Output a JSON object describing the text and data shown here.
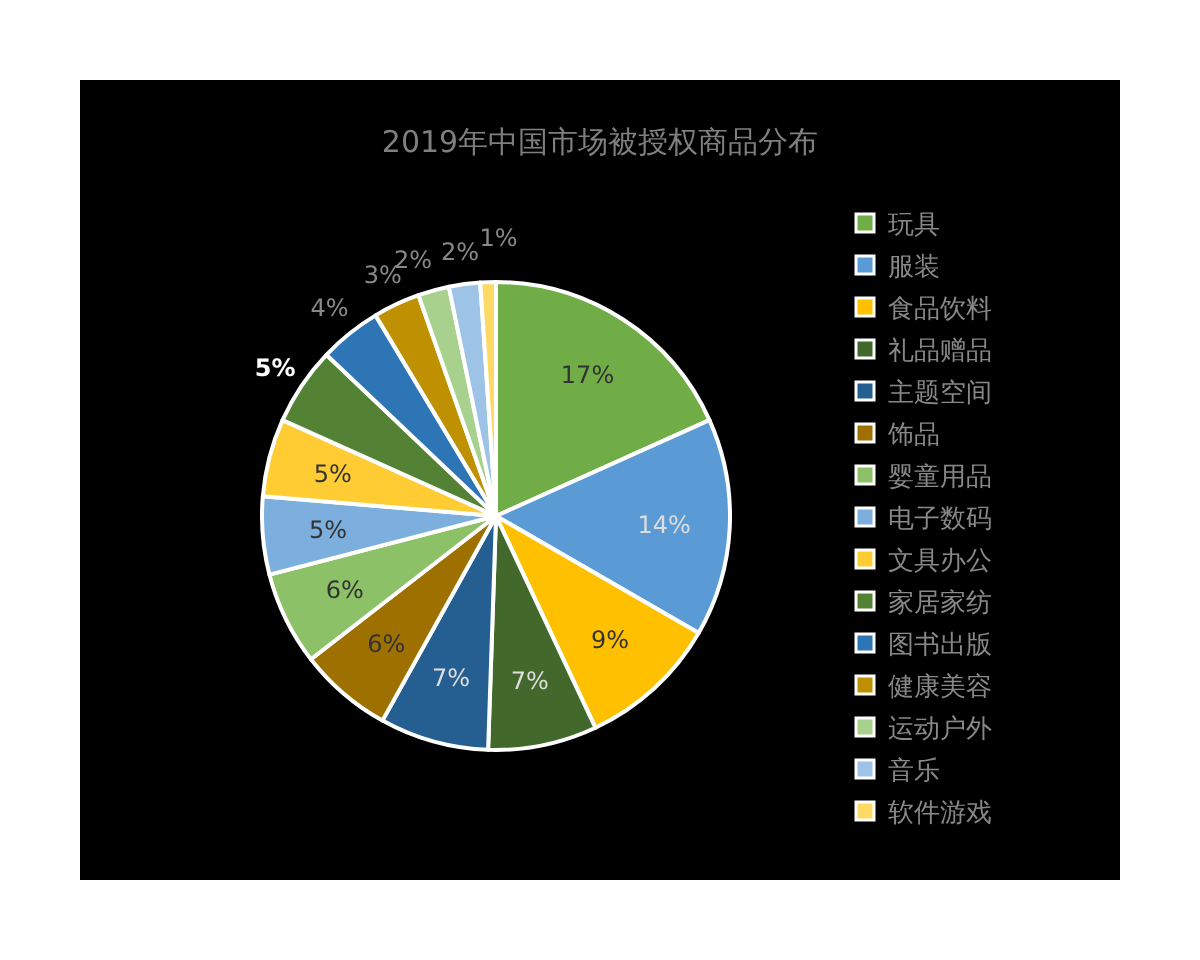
{
  "chart_data": {
    "type": "pie",
    "title": "2019年中国市场被授权商品分布",
    "categories": [
      "玩具",
      "服装",
      "食品饮料",
      "礼品赠品",
      "主题空间",
      "饰品",
      "婴童用品",
      "电子数码",
      "文具办公",
      "家居家纺",
      "图书出版",
      "健康美容",
      "运动户外",
      "音乐",
      "软件游戏"
    ],
    "values": [
      17,
      14,
      9,
      7,
      7,
      6,
      6,
      5,
      5,
      5,
      4,
      3,
      2,
      2,
      1
    ],
    "value_labels": [
      "17%",
      "14%",
      "9%",
      "7%",
      "7%",
      "6%",
      "6%",
      "5%",
      "5%",
      "5%",
      "4%",
      "3%",
      "2%",
      "2%",
      "1%"
    ],
    "colors": [
      "#70ad47",
      "#5b9bd5",
      "#ffc000",
      "#43682b",
      "#255e91",
      "#9e7000",
      "#8cc168",
      "#7cafdd",
      "#ffcd33",
      "#548235",
      "#2e75b6",
      "#bf9000",
      "#a9d18e",
      "#9dc3e6",
      "#ffd966"
    ],
    "legend": "right"
  }
}
